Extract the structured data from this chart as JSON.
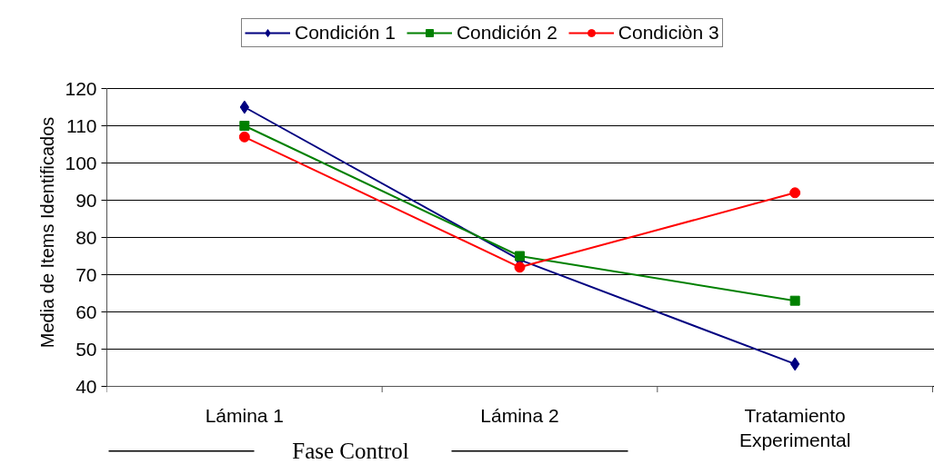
{
  "chart_data": {
    "type": "line",
    "ylabel": "Media de Items Identificados",
    "categories": [
      "Lámina 1",
      "Lámina 2",
      "Tratamiento\nExperimental"
    ],
    "series": [
      {
        "name": "Condición 1",
        "color": "#000080",
        "marker": "diamond",
        "values": [
          115,
          74,
          46
        ]
      },
      {
        "name": "Condición 2",
        "color": "#008000",
        "marker": "square",
        "values": [
          110,
          75,
          63
        ]
      },
      {
        "name": "Condiciòn 3",
        "color": "#ff0000",
        "marker": "circle",
        "values": [
          107,
          72,
          92
        ]
      }
    ],
    "ylim": [
      40,
      120
    ],
    "yticks": [
      40,
      50,
      60,
      70,
      80,
      90,
      100,
      110,
      120
    ],
    "grid": "y",
    "legend": "top",
    "annotations": [
      "Fase Control"
    ]
  }
}
